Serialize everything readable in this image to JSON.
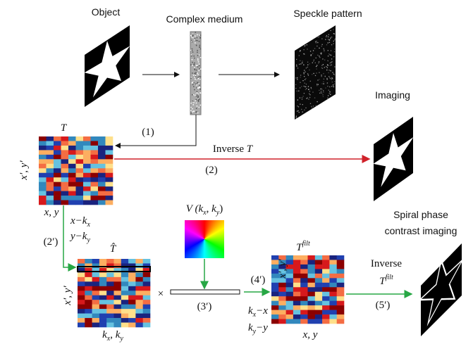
{
  "labels": {
    "object": "Object",
    "medium": "Complex medium",
    "speckle": "Speckle pattern",
    "imaging": "Imaging",
    "t_matrix": "T",
    "step1": "(1)",
    "inverse_t": {
      "word": "Inverse",
      "symbol": "T"
    },
    "step2": "(2)",
    "t_out_axis": "x′, y′",
    "t_in_axis": "x, y",
    "shift_x": {
      "main": "x−k",
      "sub": "x"
    },
    "shift_y": {
      "main": "y−k",
      "sub": "y"
    },
    "step2p": "(2′)",
    "v_filter": {
      "v": "V",
      "open": " (k",
      "sub1": "x",
      "comma": ", k",
      "sub2": "y",
      "close": ")"
    },
    "spiral": [
      "Spiral phase",
      "contrast imaging"
    ],
    "t_hat": "T̂",
    "t_hat_out_axis": "x′, y′",
    "t_hat_in_axis": {
      "a": "k",
      "sub1": "x",
      "b": ", k",
      "sub2": "y"
    },
    "times": "×",
    "step3p": "(3′)",
    "step4p": "(4′)",
    "t_filt": {
      "symbol": "T",
      "sup": "filt"
    },
    "t_filt_out_axis": "x′, y′",
    "t_filt_in_axis": "x, y",
    "back_x": {
      "a": "k",
      "sub": "x",
      "b": "−x"
    },
    "back_y": {
      "a": "k",
      "sub": "y",
      "b": "−y"
    },
    "inverse2": "Inverse",
    "t_filt2": {
      "symbol": "T",
      "sup": "filt"
    },
    "step5p": "(5′)"
  }
}
